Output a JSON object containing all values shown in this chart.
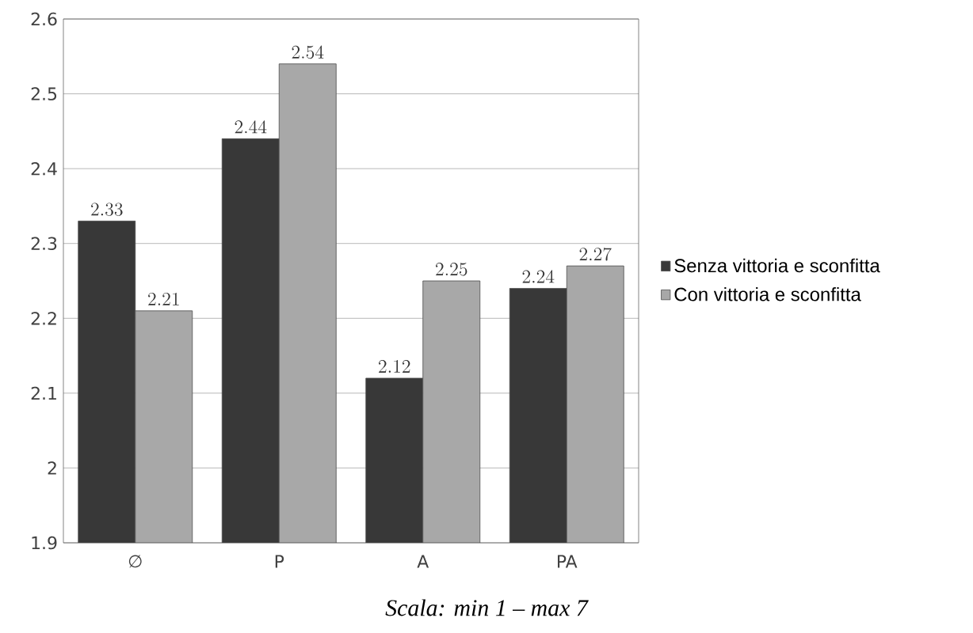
{
  "chart_data": {
    "type": "bar",
    "categories": [
      "∅",
      "P",
      "A",
      "PA"
    ],
    "series": [
      {
        "name": "Senza vittoria e sconfitta",
        "color": "#383838",
        "values": [
          2.33,
          2.44,
          2.12,
          2.24
        ]
      },
      {
        "name": "Con vittoria e sconfitta",
        "color": "#a8a8a8",
        "values": [
          2.21,
          2.54,
          2.25,
          2.27
        ]
      }
    ],
    "ylim": [
      1.9,
      2.6
    ],
    "yticks": [
      1.9,
      2,
      2.1,
      2.2,
      2.3,
      2.4,
      2.5,
      2.6
    ],
    "grid": "y",
    "legend": "right",
    "data_labels": true,
    "annotations": [
      "Scala: min 1 – max 7"
    ]
  }
}
